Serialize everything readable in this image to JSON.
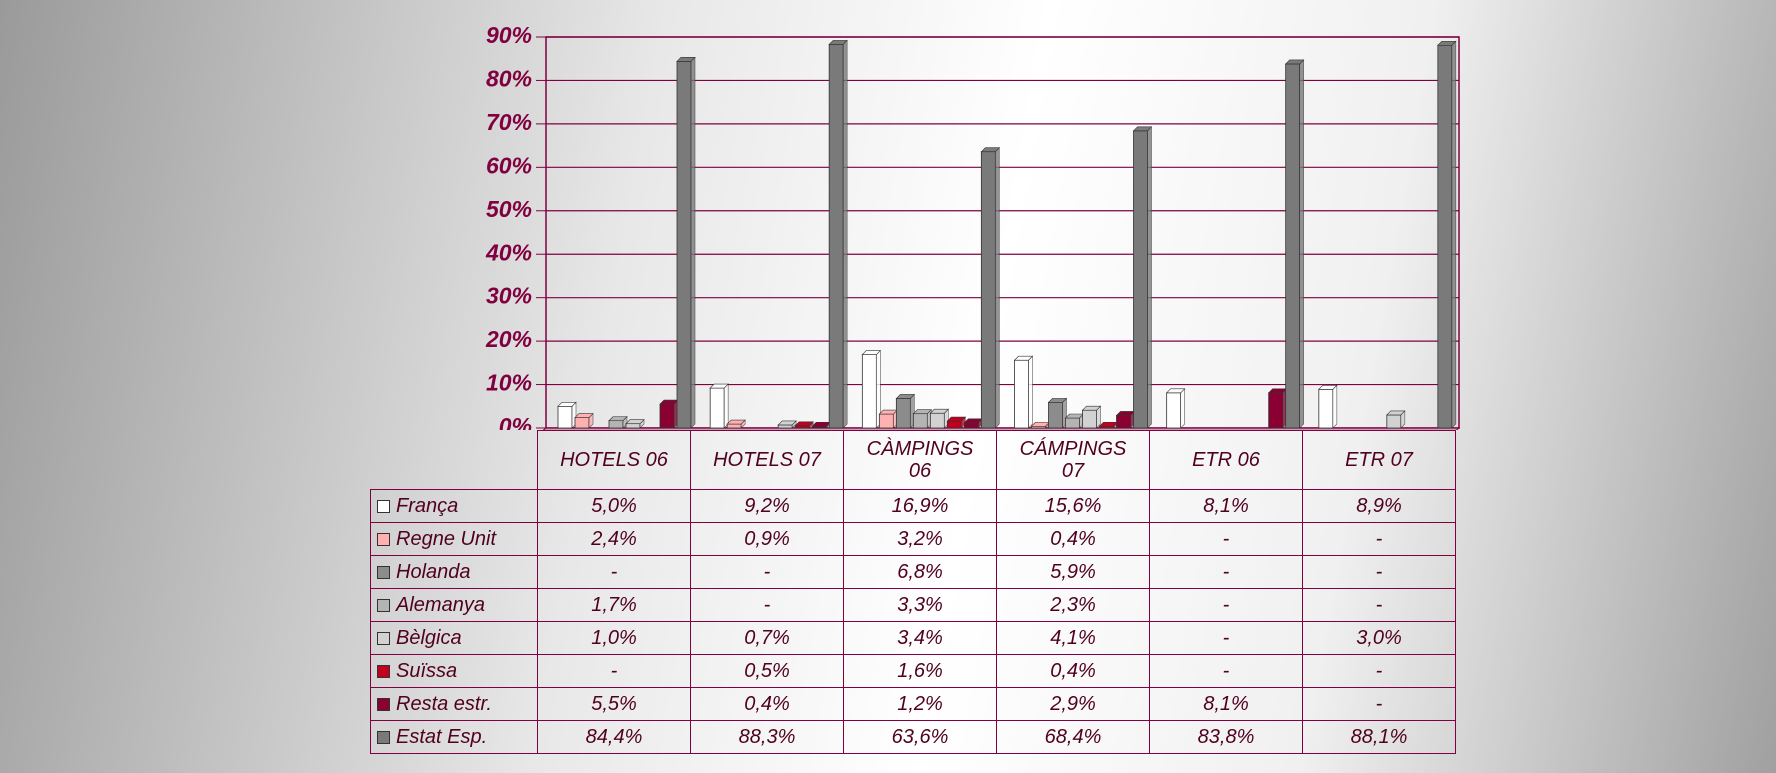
{
  "chart_data": {
    "type": "bar",
    "categories": [
      "HOTELS 06",
      "HOTELS 07",
      "CÀMPINGS 06",
      "CÁMPINGS 07",
      "ETR 06",
      "ETR 07"
    ],
    "series": [
      {
        "name": "França",
        "color": "#ffffff",
        "values": [
          5.0,
          9.2,
          16.9,
          15.6,
          8.1,
          8.9
        ],
        "value_labels": [
          "5,0%",
          "9,2%",
          "16,9%",
          "15,6%",
          "8,1%",
          "8,9%"
        ]
      },
      {
        "name": "Regne Unit",
        "color": "#ffb0b0",
        "values": [
          2.4,
          0.9,
          3.2,
          0.4,
          null,
          null
        ],
        "value_labels": [
          "2,4%",
          "0,9%",
          "3,2%",
          "0,4%",
          "-",
          "-"
        ]
      },
      {
        "name": "Holanda",
        "color": "#8c8c8c",
        "values": [
          null,
          null,
          6.8,
          5.9,
          null,
          null
        ],
        "value_labels": [
          "-",
          "-",
          "6,8%",
          "5,9%",
          "-",
          "-"
        ]
      },
      {
        "name": "Alemanya",
        "color": "#b4b4b4",
        "values": [
          1.7,
          null,
          3.3,
          2.3,
          null,
          null
        ],
        "value_labels": [
          "1,7%",
          "-",
          "3,3%",
          "2,3%",
          "-",
          "-"
        ]
      },
      {
        "name": "Bèlgica",
        "color": "#d2d2d2",
        "values": [
          1.0,
          0.7,
          3.4,
          4.1,
          null,
          3.0
        ],
        "value_labels": [
          "1,0%",
          "0,7%",
          "3,4%",
          "4,1%",
          "-",
          "3,0%"
        ]
      },
      {
        "name": "Suïssa",
        "color": "#c0001e",
        "values": [
          null,
          0.5,
          1.6,
          0.4,
          null,
          null
        ],
        "value_labels": [
          "-",
          "0,5%",
          "1,6%",
          "0,4%",
          "-",
          "-"
        ]
      },
      {
        "name": "Resta estr.",
        "color": "#8b0032",
        "values": [
          5.5,
          0.4,
          1.2,
          2.9,
          8.1,
          null
        ],
        "value_labels": [
          "5,5%",
          "0,4%",
          "1,2%",
          "2,9%",
          "8,1%",
          "-"
        ]
      },
      {
        "name": "Estat Esp.",
        "color": "#7a7a7a",
        "values": [
          84.4,
          88.3,
          63.6,
          68.4,
          83.8,
          88.1
        ],
        "value_labels": [
          "84,4%",
          "88,3%",
          "63,6%",
          "68,4%",
          "83,8%",
          "88,1%"
        ]
      }
    ],
    "ylim": [
      0,
      90
    ],
    "yticks": [
      {
        "value": 0,
        "label": "0%"
      },
      {
        "value": 10,
        "label": "10%"
      },
      {
        "value": 20,
        "label": "20%"
      },
      {
        "value": 30,
        "label": "30%"
      },
      {
        "value": 40,
        "label": "40%"
      },
      {
        "value": 50,
        "label": "50%"
      },
      {
        "value": 60,
        "label": "60%"
      },
      {
        "value": 70,
        "label": "70%"
      },
      {
        "value": 80,
        "label": "80%"
      },
      {
        "value": 90,
        "label": "90%"
      }
    ],
    "grid": true
  }
}
